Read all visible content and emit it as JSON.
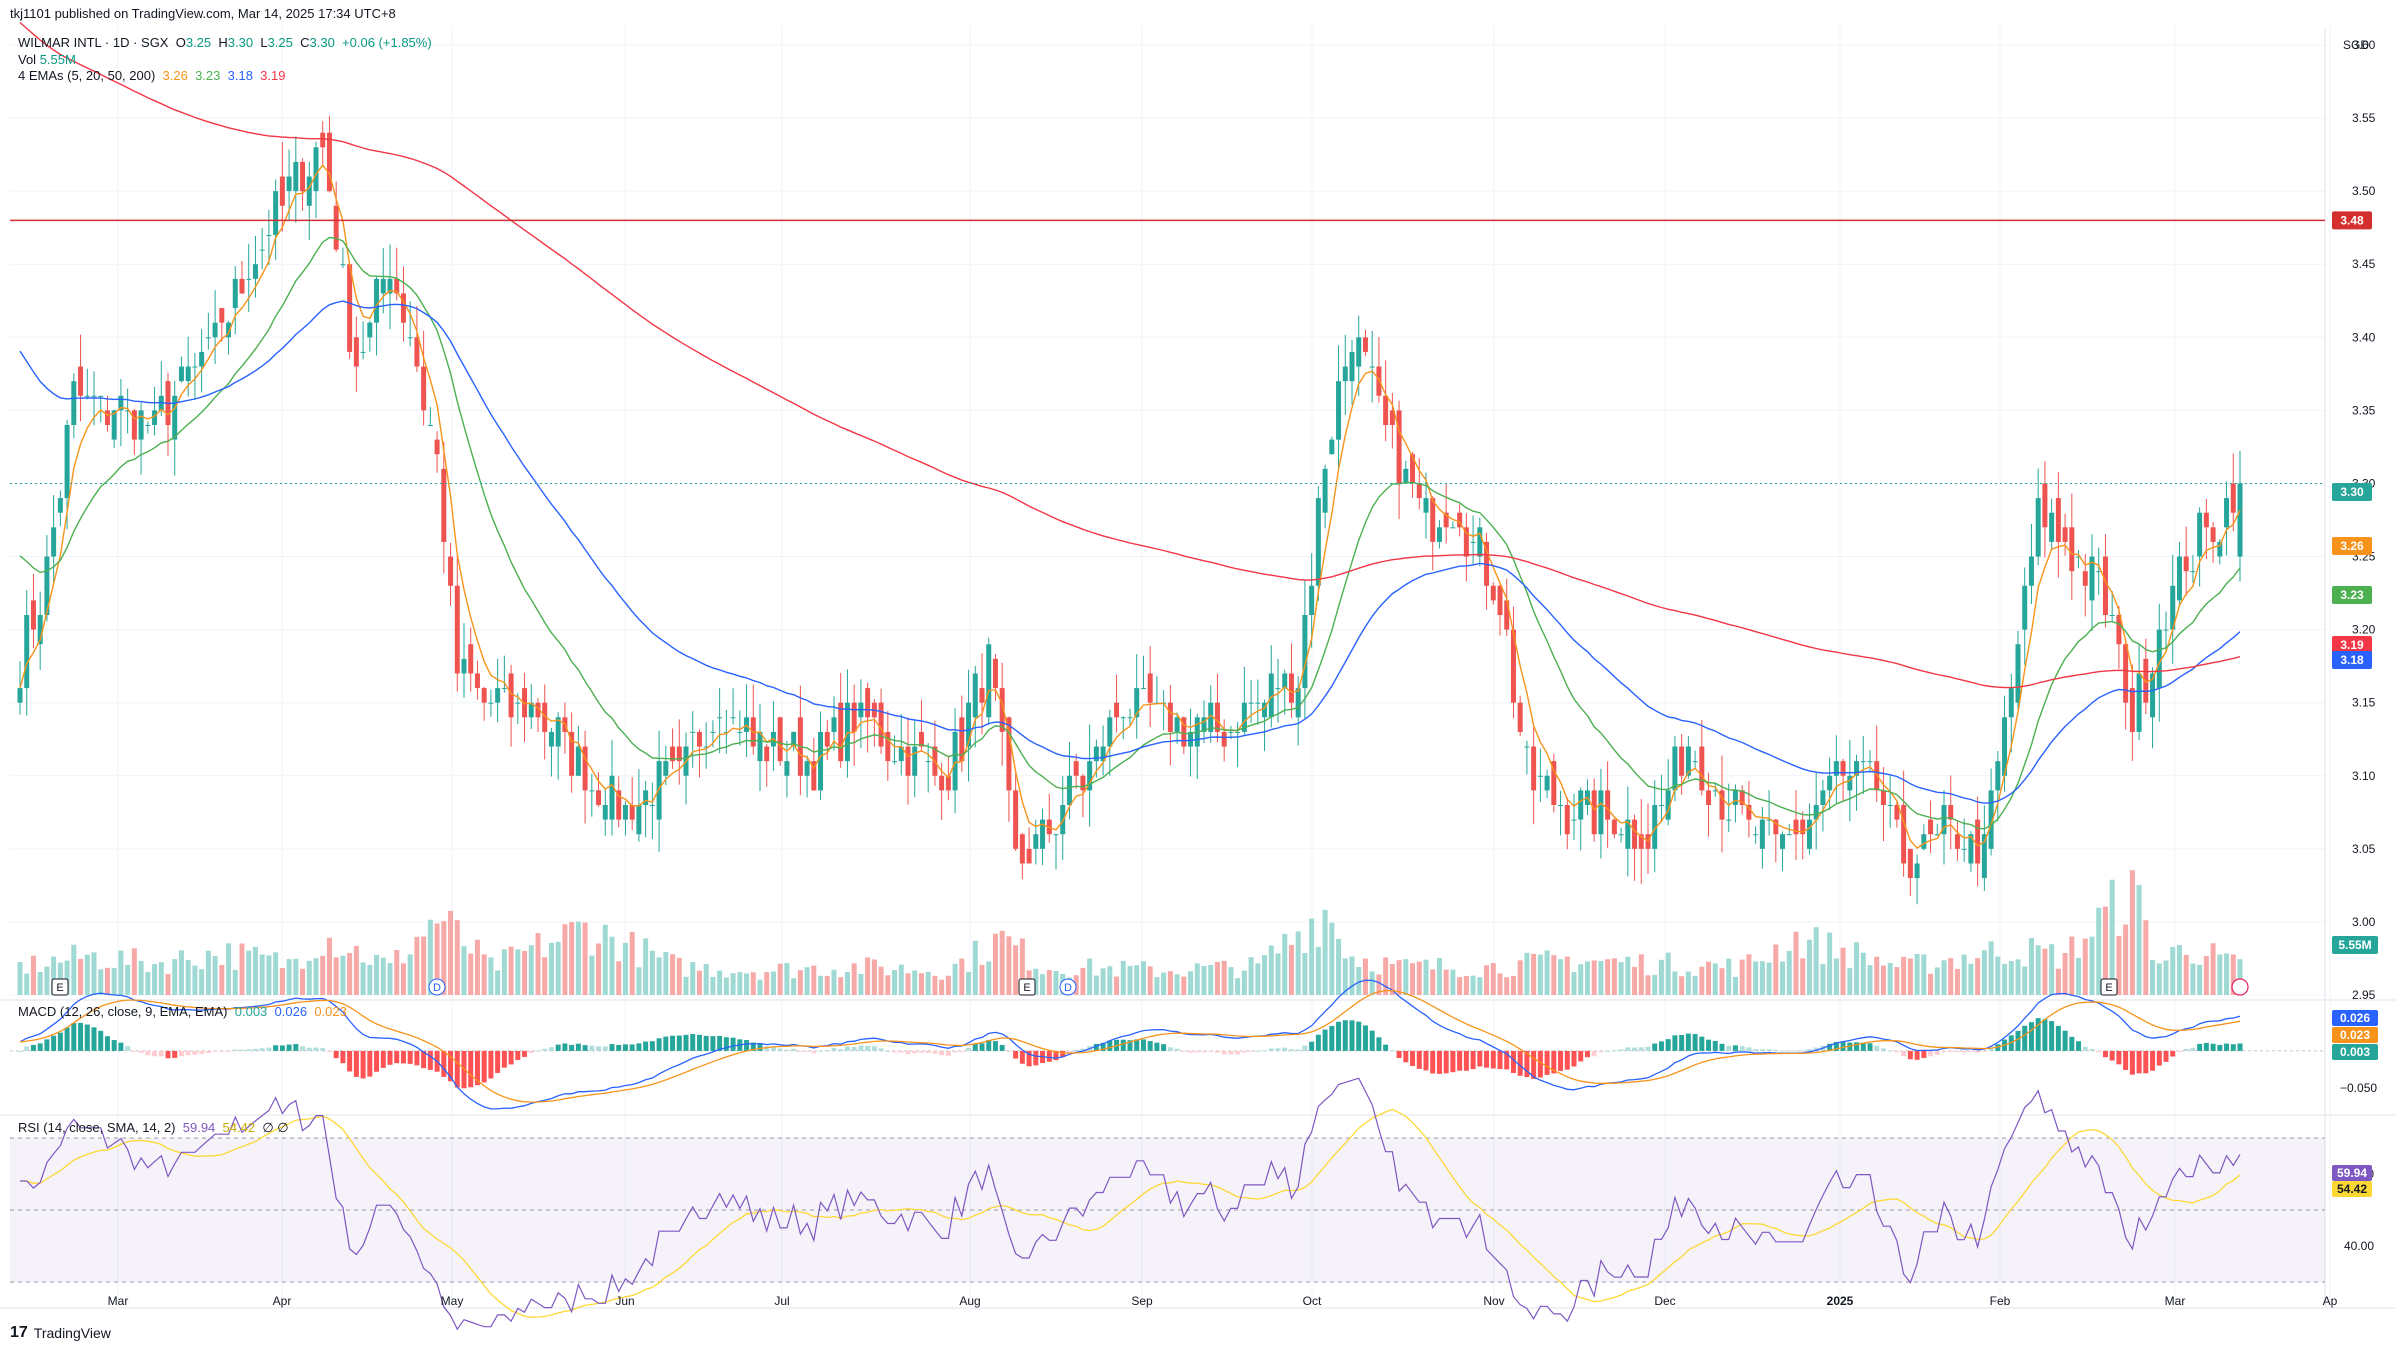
{
  "publisher": "tkj1101 published on TradingView.com, Mar 14, 2025 17:34 UTC+8",
  "symbol_line": {
    "name": "WILMAR INTL · 1D · SGX",
    "o_label": "O",
    "o": "3.25",
    "h_label": "H",
    "h": "3.30",
    "l_label": "L",
    "l": "3.25",
    "c_label": "C",
    "c": "3.30",
    "change": "+0.06 (+1.85%)"
  },
  "vol_line": {
    "label": "Vol",
    "value": "5.55M"
  },
  "ema_line": {
    "label": "4 EMAs (5, 20, 50, 200)",
    "v5": "3.26",
    "v20": "3.23",
    "v50": "3.18",
    "v200": "3.19"
  },
  "macd_line": {
    "label": "MACD (12, 26, close, 9, EMA, EMA)",
    "hist": "0.003",
    "macd": "0.026",
    "signal": "0.023"
  },
  "rsi_line": {
    "label": "RSI (14, close, SMA, 14, 2)",
    "rsi": "59.94",
    "sma": "54.42",
    "ext1": "∅",
    "ext2": "∅"
  },
  "currency": "SGD",
  "brand": "TradingView",
  "colors": {
    "up": "#26a69a",
    "down": "#ef5350",
    "ema5": "#f7931a",
    "ema20": "#4caf50",
    "ema50": "#2962ff",
    "ema200": "#f23645",
    "hline": "#d32f2f",
    "rsi": "#7e57c2",
    "rsi_sma": "#fdd835"
  },
  "chart_data": {
    "type": "candlestick",
    "price_axis": {
      "ylim": [
        2.95,
        3.6
      ],
      "ticks": [
        "2.95",
        "3.00",
        "3.05",
        "3.10",
        "3.15",
        "3.20",
        "3.25",
        "3.30",
        "3.35",
        "3.40",
        "3.45",
        "3.50",
        "3.55",
        "3.60"
      ]
    },
    "time_axis_labels": [
      "Mar",
      "Apr",
      "May",
      "Jun",
      "Jul",
      "Aug",
      "Sep",
      "Oct",
      "Nov",
      "Dec",
      "2025",
      "Feb",
      "Mar",
      "Ap"
    ],
    "horizontal_line": {
      "value": 3.48,
      "label": "3.48"
    },
    "last_price": {
      "value": 3.3,
      "label": "3.30"
    },
    "price_badges": [
      {
        "label": "3.30",
        "value": 3.3,
        "key": "last"
      },
      {
        "label": "3.26",
        "value": 3.26,
        "key": "ema5"
      },
      {
        "label": "3.23",
        "value": 3.23,
        "key": "ema20"
      },
      {
        "label": "3.19",
        "value": 3.19,
        "key": "ema200"
      },
      {
        "label": "3.18",
        "value": 3.18,
        "key": "ema50"
      }
    ],
    "volume_badge": "5.55M",
    "close_keypoints": [
      [
        0,
        3.18
      ],
      [
        4,
        3.24
      ],
      [
        8,
        3.36
      ],
      [
        14,
        3.35
      ],
      [
        20,
        3.34
      ],
      [
        28,
        3.39
      ],
      [
        34,
        3.45
      ],
      [
        40,
        3.5
      ],
      [
        45,
        3.53
      ],
      [
        50,
        3.38
      ],
      [
        55,
        3.45
      ],
      [
        58,
        3.4
      ],
      [
        62,
        3.32
      ],
      [
        65,
        3.17
      ],
      [
        70,
        3.15
      ],
      [
        78,
        3.14
      ],
      [
        84,
        3.1
      ],
      [
        90,
        3.08
      ],
      [
        98,
        3.1
      ],
      [
        104,
        3.15
      ],
      [
        110,
        3.12
      ],
      [
        118,
        3.11
      ],
      [
        124,
        3.14
      ],
      [
        130,
        3.12
      ],
      [
        138,
        3.1
      ],
      [
        144,
        3.18
      ],
      [
        148,
        3.04
      ],
      [
        152,
        3.06
      ],
      [
        158,
        3.1
      ],
      [
        164,
        3.15
      ],
      [
        170,
        3.14
      ],
      [
        178,
        3.13
      ],
      [
        184,
        3.15
      ],
      [
        190,
        3.17
      ],
      [
        194,
        3.32
      ],
      [
        198,
        3.4
      ],
      [
        202,
        3.35
      ],
      [
        208,
        3.28
      ],
      [
        214,
        3.28
      ],
      [
        220,
        3.22
      ],
      [
        224,
        3.1
      ],
      [
        230,
        3.08
      ],
      [
        236,
        3.07
      ],
      [
        242,
        3.06
      ],
      [
        248,
        3.12
      ],
      [
        254,
        3.08
      ],
      [
        260,
        3.05
      ],
      [
        266,
        3.07
      ],
      [
        270,
        3.1
      ],
      [
        276,
        3.09
      ],
      [
        280,
        3.04
      ],
      [
        286,
        3.06
      ],
      [
        292,
        3.05
      ],
      [
        296,
        3.16
      ],
      [
        300,
        3.28
      ],
      [
        304,
        3.26
      ],
      [
        310,
        3.22
      ],
      [
        314,
        3.14
      ],
      [
        318,
        3.2
      ],
      [
        322,
        3.25
      ],
      [
        326,
        3.27
      ],
      [
        330,
        3.3
      ]
    ],
    "volume_profile": [
      [
        0,
        0.4
      ],
      [
        10,
        0.55
      ],
      [
        20,
        0.45
      ],
      [
        30,
        0.6
      ],
      [
        40,
        0.45
      ],
      [
        45,
        0.85
      ],
      [
        55,
        0.4
      ],
      [
        62,
        1.1
      ],
      [
        70,
        0.4
      ],
      [
        84,
        0.95
      ],
      [
        98,
        0.4
      ],
      [
        110,
        0.35
      ],
      [
        124,
        0.4
      ],
      [
        138,
        0.35
      ],
      [
        146,
        0.8
      ],
      [
        152,
        0.4
      ],
      [
        170,
        0.35
      ],
      [
        184,
        0.4
      ],
      [
        194,
        1.2
      ],
      [
        198,
        0.55
      ],
      [
        205,
        0.4
      ],
      [
        220,
        0.4
      ],
      [
        230,
        0.5
      ],
      [
        242,
        0.45
      ],
      [
        256,
        0.4
      ],
      [
        264,
        0.8
      ],
      [
        280,
        0.4
      ],
      [
        296,
        0.65
      ],
      [
        304,
        0.55
      ],
      [
        314,
        1.5
      ],
      [
        318,
        0.45
      ],
      [
        322,
        0.7
      ],
      [
        330,
        0.4
      ]
    ],
    "macd": {
      "axis_ticks": [
        "0.026",
        "0.023",
        "0.003",
        "−0.050"
      ],
      "ylim": [
        -0.065,
        0.045
      ]
    },
    "rsi": {
      "axis_ticks": [
        "60.00",
        "40.00"
      ],
      "badges": [
        "59.94",
        "54.42"
      ],
      "ylim": [
        25,
        75
      ],
      "upper": 70,
      "lower": 30
    }
  }
}
